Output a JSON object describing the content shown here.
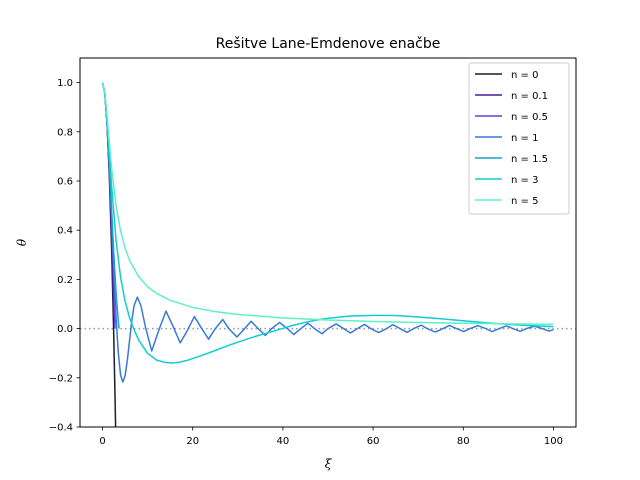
{
  "chart_data": {
    "type": "line",
    "title": "Rešitve Lane-Emdenove enačbe",
    "xlabel": "ξ",
    "ylabel": "θ",
    "xlim": [
      -5,
      105
    ],
    "ylim": [
      -0.4,
      1.1
    ],
    "xticks": [
      0,
      20,
      40,
      60,
      80,
      100
    ],
    "yticks": [
      -0.4,
      -0.2,
      0.0,
      0.2,
      0.4,
      0.6,
      0.8,
      1.0
    ],
    "xtick_labels": [
      "0",
      "20",
      "40",
      "60",
      "80",
      "100"
    ],
    "ytick_labels": [
      "−0.4",
      "−0.2",
      "0.0",
      "0.2",
      "0.4",
      "0.6",
      "0.8",
      "1.0"
    ],
    "grid": false,
    "legend_position": "top-right",
    "reference_line": {
      "y": 0,
      "style": "dotted",
      "color": "#9a9aa6"
    },
    "series": [
      {
        "name": "n = 0",
        "color": "#1c1c33",
        "x": [
          0,
          0.5,
          1.0,
          1.5,
          2.0,
          2.45,
          2.8,
          3.0,
          3.1
        ],
        "y": [
          1.0,
          0.958,
          0.833,
          0.625,
          0.333,
          0.0,
          -0.307,
          -0.5,
          -0.602
        ]
      },
      {
        "name": "n = 0.1",
        "color": "#4a1a9e",
        "x": [
          0,
          0.5,
          1.0,
          1.5,
          2.0,
          2.4,
          2.5
        ],
        "y": [
          1.0,
          0.958,
          0.835,
          0.635,
          0.37,
          0.12,
          0.05
        ]
      },
      {
        "name": "n = 0.5",
        "color": "#6a3fd6",
        "x": [
          0,
          0.5,
          1.0,
          1.5,
          2.0,
          2.5,
          2.75
        ],
        "y": [
          1.0,
          0.959,
          0.84,
          0.664,
          0.441,
          0.197,
          0.0
        ]
      },
      {
        "name": "n = 1",
        "color": "#3a78d8",
        "x": [
          0,
          0.5,
          1.0,
          1.5,
          2.0,
          2.5,
          3.0,
          3.1416,
          3.5,
          4.0,
          4.4934,
          5.0,
          5.5,
          6.0,
          6.5,
          7.0,
          7.7253,
          8.5,
          9.5,
          10.9041,
          12.5,
          14.0662,
          15.5,
          17.2208,
          18.5,
          20.3713,
          22.0,
          23.5195,
          25.0,
          26.6661,
          28.0,
          29.8116,
          31.5,
          32.9564,
          34.5,
          36.1006,
          37.5,
          39.2444,
          41.0,
          42.3879,
          44.0,
          45.5311,
          47.0,
          48.6741,
          50.0,
          51.8169,
          53.5,
          54.9596,
          56.5,
          58.1022,
          59.5,
          61.2447,
          63.0,
          64.3871,
          66.0,
          67.5294,
          69.0,
          70.6717,
          72.0,
          73.8139,
          75.5,
          76.956,
          78.5,
          80.0981,
          81.5,
          83.2402,
          85.0,
          86.3822,
          88.0,
          89.5242,
          91.0,
          92.6661,
          94.0,
          95.808,
          97.5,
          98.9499,
          100
        ],
        "y": [
          1.0,
          0.959,
          0.841,
          0.665,
          0.455,
          0.239,
          0.047,
          0.0,
          -0.1,
          -0.189,
          -0.217,
          -0.192,
          -0.128,
          -0.047,
          0.033,
          0.094,
          0.128,
          0.094,
          0.008,
          -0.091,
          -0.005,
          0.071,
          0.015,
          -0.058,
          -0.018,
          0.049,
          0.0,
          -0.043,
          0.0,
          0.037,
          0.0,
          -0.034,
          0.0,
          0.03,
          0.0,
          -0.028,
          0.0,
          0.025,
          0.0,
          -0.024,
          0.0,
          0.022,
          0.0,
          -0.021,
          0.0,
          0.019,
          0.0,
          -0.018,
          0.0,
          0.017,
          0.0,
          -0.016,
          0.0,
          0.016,
          0.0,
          -0.015,
          0.0,
          0.014,
          0.0,
          -0.014,
          0.0,
          0.013,
          0.0,
          -0.012,
          0.0,
          0.012,
          0.0,
          -0.012,
          0.0,
          0.011,
          0.0,
          -0.011,
          0.0,
          0.01,
          0.0,
          -0.01,
          -0.005
        ]
      },
      {
        "name": "n = 1.5",
        "color": "#13a6c8",
        "x": [
          0,
          0.5,
          1.0,
          1.5,
          2.0,
          2.5,
          3.0,
          3.5,
          3.6538
        ],
        "y": [
          1.0,
          0.959,
          0.842,
          0.676,
          0.487,
          0.303,
          0.145,
          0.03,
          0.0
        ]
      },
      {
        "name": "n = 3",
        "color": "#12cdd0",
        "x": [
          0,
          0.5,
          1.0,
          1.5,
          2.0,
          3.0,
          4.0,
          5.0,
          6.0,
          6.8968,
          8.0,
          10.0,
          12.0,
          14.0,
          15.5,
          17.0,
          19.0,
          22.0,
          25.0,
          28.0,
          31.0,
          34.0,
          38.0,
          42.0,
          46.0,
          50.0,
          55.0,
          60.0,
          65.0,
          70.0,
          75.0,
          80.0,
          85.0,
          90.0,
          95.0,
          100.0
        ],
        "y": [
          1.0,
          0.96,
          0.855,
          0.713,
          0.583,
          0.359,
          0.209,
          0.111,
          0.044,
          0.0,
          -0.046,
          -0.101,
          -0.128,
          -0.138,
          -0.14,
          -0.137,
          -0.128,
          -0.109,
          -0.089,
          -0.068,
          -0.049,
          -0.031,
          -0.01,
          0.012,
          0.03,
          0.042,
          0.051,
          0.054,
          0.053,
          0.047,
          0.04,
          0.032,
          0.024,
          0.017,
          0.012,
          0.008
        ]
      },
      {
        "name": "n = 5",
        "color": "#5ef0c8",
        "x": [
          0,
          0.5,
          1.0,
          1.5,
          2.0,
          3.0,
          4.0,
          5.0,
          6.0,
          8.0,
          10.0,
          12.0,
          15.0,
          20.0,
          25.0,
          30.0,
          40.0,
          50.0,
          60.0,
          70.0,
          80.0,
          90.0,
          100.0
        ],
        "y": [
          1.0,
          0.961,
          0.866,
          0.756,
          0.655,
          0.5,
          0.397,
          0.327,
          0.277,
          0.212,
          0.17,
          0.143,
          0.115,
          0.086,
          0.069,
          0.058,
          0.043,
          0.035,
          0.029,
          0.025,
          0.022,
          0.019,
          0.017
        ]
      }
    ]
  }
}
